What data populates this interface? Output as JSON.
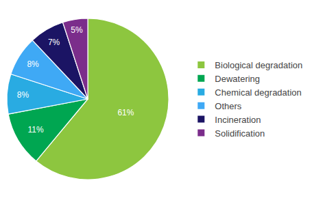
{
  "chart_data": {
    "type": "pie",
    "categories": [
      "Biological degradation",
      "Dewatering",
      "Chemical degradation",
      "Others",
      "Incineration",
      "Solidification"
    ],
    "values": [
      61,
      11,
      8,
      8,
      7,
      5
    ],
    "value_labels": [
      "61%",
      "11%",
      "8%",
      "8%",
      "7%",
      "5%"
    ],
    "colors": [
      "#8dc63f",
      "#00a651",
      "#29abe2",
      "#3fa9f5",
      "#1b1464",
      "#7b2d8b"
    ],
    "legend": "right",
    "data_labels": true
  }
}
